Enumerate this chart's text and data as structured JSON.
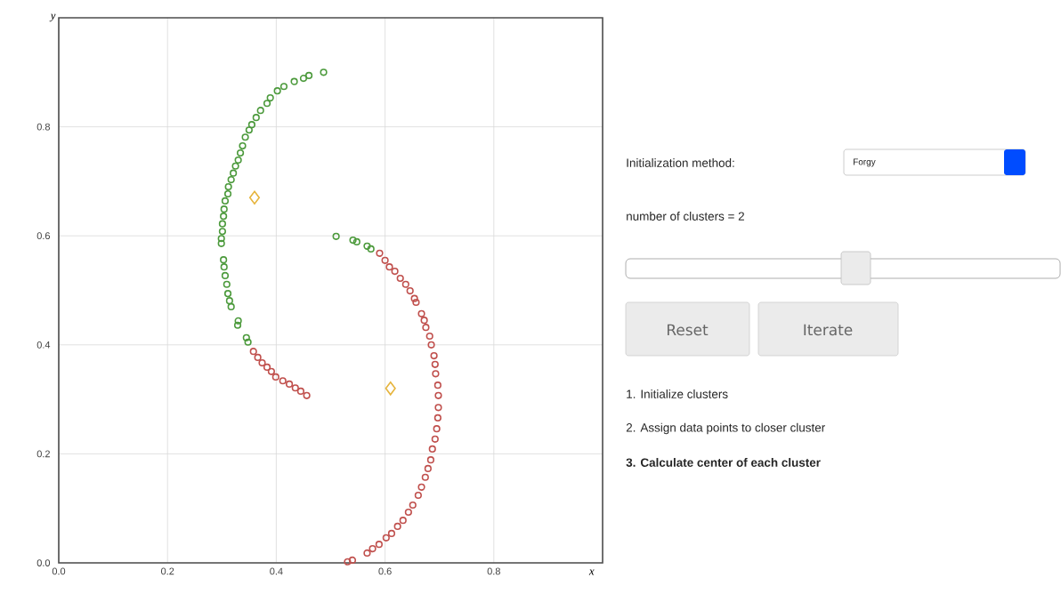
{
  "chart_data": [
    {
      "type": "scatter",
      "xlabel": "x",
      "ylabel": "y",
      "xlim": [
        0,
        1
      ],
      "ylim": [
        0,
        1
      ],
      "xticks": [
        {
          "value": 0,
          "label": "0.0"
        },
        0.2,
        0.4,
        0.6,
        0.8
      ],
      "yticks": [
        {
          "value": 0,
          "label": "0.0"
        },
        0.2,
        0.4,
        0.6,
        0.8
      ],
      "grid": true,
      "marker": "circle",
      "series": [
        {
          "color": "#4c9a3c",
          "x": [
            0.487,
            0.46,
            0.45,
            0.433,
            0.414,
            0.402,
            0.389,
            0.383,
            0.371,
            0.363,
            0.355,
            0.35,
            0.343,
            0.338,
            0.334,
            0.33,
            0.325,
            0.321,
            0.317,
            0.312,
            0.311,
            0.306,
            0.304,
            0.303,
            0.301,
            0.301,
            0.299,
            0.299,
            0.303,
            0.304,
            0.306,
            0.309,
            0.311,
            0.314,
            0.317,
            0.33,
            0.329,
            0.345,
            0.348,
            0.51,
            0.541,
            0.548,
            0.567,
            0.574
          ],
          "values": [
            0.9,
            0.894,
            0.889,
            0.883,
            0.874,
            0.866,
            0.853,
            0.843,
            0.83,
            0.817,
            0.804,
            0.794,
            0.781,
            0.765,
            0.752,
            0.739,
            0.728,
            0.715,
            0.703,
            0.69,
            0.677,
            0.664,
            0.649,
            0.636,
            0.622,
            0.608,
            0.595,
            0.586,
            0.556,
            0.543,
            0.527,
            0.511,
            0.494,
            0.481,
            0.47,
            0.444,
            0.436,
            0.413,
            0.405,
            0.599,
            0.592,
            0.589,
            0.581,
            0.576
          ]
        },
        {
          "color": "#c0504d",
          "x": [
            0.358,
            0.366,
            0.374,
            0.383,
            0.391,
            0.399,
            0.412,
            0.424,
            0.435,
            0.445,
            0.456,
            0.59,
            0.6,
            0.608,
            0.618,
            0.628,
            0.638,
            0.646,
            0.654,
            0.657,
            0.667,
            0.672,
            0.675,
            0.682,
            0.685,
            0.69,
            0.692,
            0.693,
            0.697,
            0.698,
            0.698,
            0.697,
            0.695,
            0.692,
            0.687,
            0.684,
            0.679,
            0.674,
            0.667,
            0.661,
            0.651,
            0.643,
            0.633,
            0.623,
            0.612,
            0.602,
            0.589,
            0.577,
            0.567,
            0.54,
            0.531
          ],
          "values": [
            0.388,
            0.377,
            0.367,
            0.359,
            0.351,
            0.341,
            0.334,
            0.328,
            0.321,
            0.315,
            0.307,
            0.568,
            0.555,
            0.543,
            0.535,
            0.522,
            0.511,
            0.499,
            0.485,
            0.478,
            0.457,
            0.445,
            0.432,
            0.416,
            0.4,
            0.38,
            0.364,
            0.347,
            0.326,
            0.307,
            0.285,
            0.266,
            0.246,
            0.227,
            0.209,
            0.189,
            0.173,
            0.157,
            0.139,
            0.124,
            0.106,
            0.093,
            0.078,
            0.067,
            0.054,
            0.046,
            0.034,
            0.026,
            0.018,
            0.005,
            0.002
          ]
        },
        {
          "color": "#e6b43c",
          "marker": "diamond",
          "x": [
            0.36,
            0.61
          ],
          "values": [
            0.67,
            0.32
          ]
        }
      ]
    },
    {
      "type": "other",
      "annotations": [
        "Initialization method:",
        "Forgy",
        "number of clusters = 2",
        "Reset",
        "Iterate",
        "1. Initialize clusters",
        "2. Assign data points to closer cluster",
        "3. Calculate center of each cluster"
      ]
    }
  ]
}
